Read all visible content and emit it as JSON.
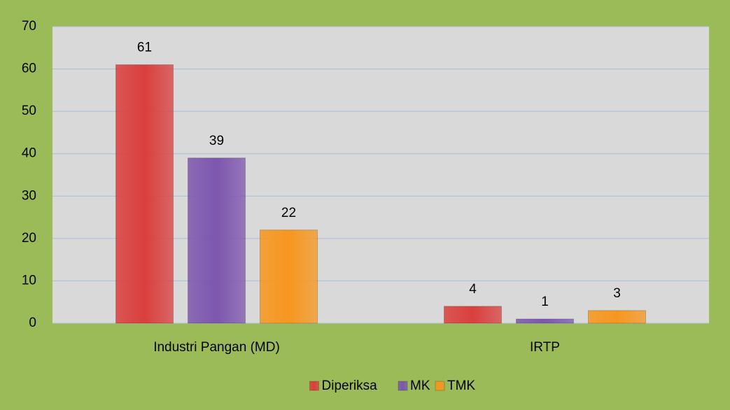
{
  "chart_data": {
    "type": "bar",
    "categories": [
      "Industri Pangan (MD)",
      "IRTP"
    ],
    "series": [
      {
        "name": "Diperiksa",
        "color": "#d93f3d",
        "values": [
          61,
          4
        ]
      },
      {
        "name": "MK",
        "color": "#7d56ae",
        "values": [
          39,
          1
        ]
      },
      {
        "name": "TMK",
        "color": "#f7961e",
        "values": [
          22,
          3
        ]
      }
    ],
    "ylim": [
      0,
      70
    ],
    "yticks": [
      0,
      10,
      20,
      30,
      40,
      50,
      60,
      70
    ],
    "grid": true,
    "legend": "bottom"
  }
}
